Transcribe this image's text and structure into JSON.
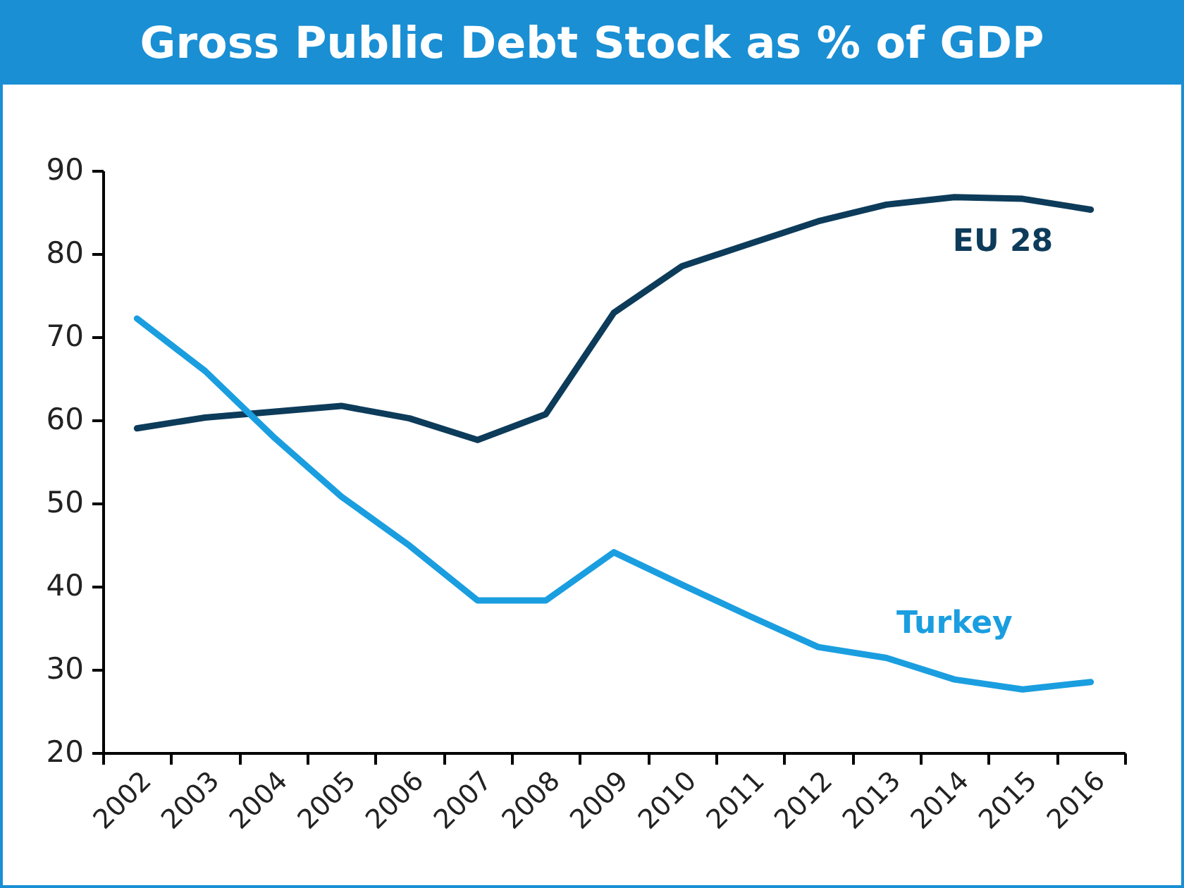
{
  "chart_data": {
    "type": "line",
    "title": "Gross Public Debt Stock as % of GDP",
    "categories": [
      "2002",
      "2003",
      "2004",
      "2005",
      "2006",
      "2007",
      "2008",
      "2009",
      "2010",
      "2011",
      "2012",
      "2013",
      "2014",
      "2015",
      "2016"
    ],
    "series": [
      {
        "name": "EU 28",
        "color": "#0d3b5a",
        "values": [
          59.0,
          60.3,
          61.0,
          61.7,
          60.2,
          57.6,
          60.7,
          72.9,
          78.5,
          81.2,
          83.9,
          85.9,
          86.8,
          86.6,
          85.3
        ]
      },
      {
        "name": "Turkey",
        "color": "#1a9ee0",
        "values": [
          72.2,
          65.9,
          58.0,
          50.8,
          44.9,
          38.3,
          38.3,
          44.1,
          40.2,
          36.4,
          32.7,
          31.4,
          28.8,
          27.6,
          28.5
        ]
      }
    ],
    "ylim": [
      20,
      90
    ],
    "yticks": [
      20,
      30,
      40,
      50,
      60,
      70,
      80,
      90
    ],
    "grid": false,
    "legend": false,
    "marker": "none",
    "line_style": "solid"
  }
}
